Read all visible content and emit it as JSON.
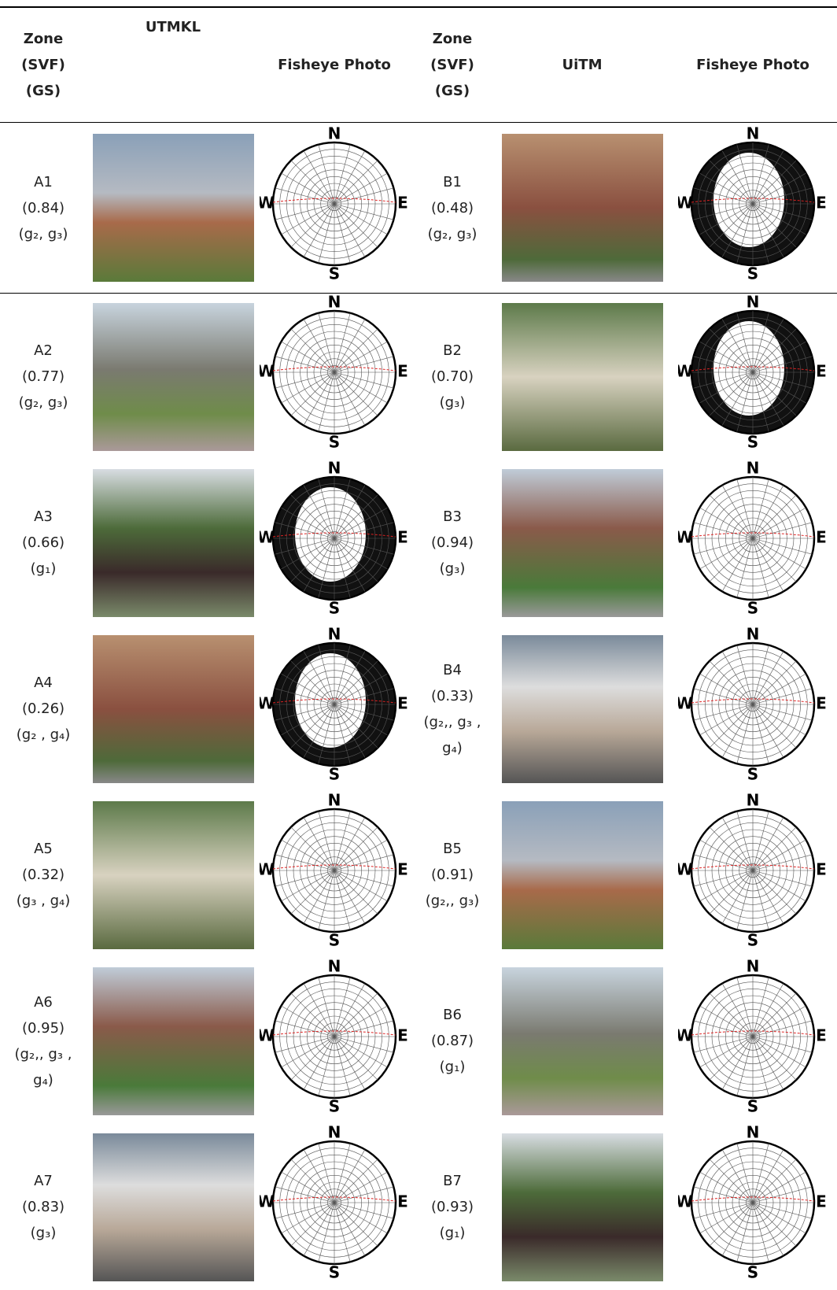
{
  "header": {
    "zone_a": [
      "Zone",
      "(SVF)",
      "(GS)"
    ],
    "site_a": "UTMKL",
    "fisheye_a": "Fisheye Photo",
    "zone_b": [
      "Zone",
      "(SVF)",
      "(GS)"
    ],
    "site_b": "UiTM",
    "fisheye_b": "Fisheye Photo"
  },
  "compass": {
    "n": "N",
    "e": "E",
    "s": "S",
    "w": "W"
  },
  "rows": [
    {
      "a": {
        "zone": "A1",
        "svf": "(0.84)",
        "gs": "(g₂, g₃)"
      },
      "b": {
        "zone": "B1",
        "svf": "(0.48)",
        "gs": "(g₂, g₃)"
      }
    },
    {
      "a": {
        "zone": "A2",
        "svf": "(0.77)",
        "gs": "(g₂, g₃)"
      },
      "b": {
        "zone": "B2",
        "svf": "(0.70)",
        "gs": "(g₃)"
      }
    },
    {
      "a": {
        "zone": "A3",
        "svf": "(0.66)",
        "gs": "(g₁)"
      },
      "b": {
        "zone": "B3",
        "svf": "(0.94)",
        "gs": "(g₃)"
      }
    },
    {
      "a": {
        "zone": "A4",
        "svf": "(0.26)",
        "gs": "(g₂ , g₄)"
      },
      "b": {
        "zone": "B4",
        "svf": "(0.33)",
        "gs": "(g₂,, g₃ , g₄)"
      }
    },
    {
      "a": {
        "zone": "A5",
        "svf": "(0.32)",
        "gs": "(g₃ , g₄)"
      },
      "b": {
        "zone": "B5",
        "svf": "(0.91)",
        "gs": "(g₂,, g₃)"
      }
    },
    {
      "a": {
        "zone": "A6",
        "svf": "(0.95)",
        "gs": "(g₂,, g₃ , g₄)"
      },
      "b": {
        "zone": "B6",
        "svf": "(0.87)",
        "gs": "(g₁)"
      }
    },
    {
      "a": {
        "zone": "A7",
        "svf": "(0.83)",
        "gs": "(g₃)"
      },
      "b": {
        "zone": "B7",
        "svf": "(0.93)",
        "gs": "(g₁)"
      }
    }
  ]
}
